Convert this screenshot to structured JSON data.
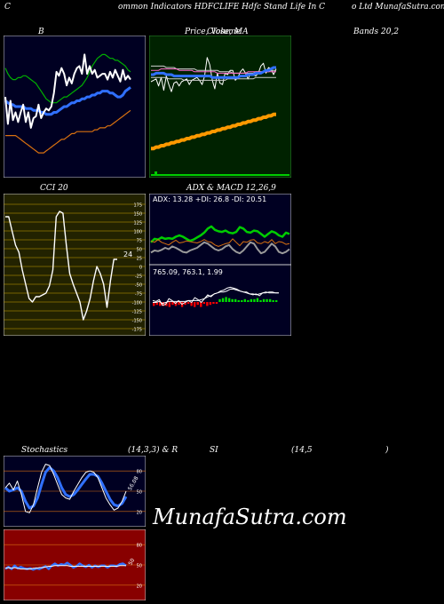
{
  "header": {
    "left": "C",
    "middle": "ommon  Indicators HDFCLIFE Hdfc Stand Life  In  C",
    "right": "o  Ltd MunafaSutra.com"
  },
  "titles": {
    "bands_b": "B",
    "price_a": "Price, Volume",
    "price_b": "Close, MA",
    "bands_end": "Bands 20,2",
    "cci": "CCI 20",
    "adx_macd": "ADX  & MACD 12,26,9",
    "stoch_a": "Stochastics",
    "stoch_b": "(14,3,3) & R",
    "rsi_a": "SI",
    "rsi_b": "(14,5",
    "rsi_c": ")"
  },
  "watermark": "MunafaSutra.com",
  "colors": {
    "bands_bg": "#000022",
    "price_bg": "#002200",
    "cci_bg": "#222200",
    "adx_bg": "#000022",
    "stoch_bg": "#000022",
    "rsi_bg": "#880000",
    "panel_border": "#2c8a2c",
    "grid_yellow": "#c8a000",
    "grid_white": "#ffffff",
    "upper_band": "#00b000",
    "lower_band": "#d87010",
    "mid_band": "#3070ff",
    "price_line": "#ffffff",
    "ma_orange": "#ff9900",
    "volume_green": "#00cc00",
    "adx_green": "#00cc00",
    "dim_grey": "#9a9a9a",
    "macd_red": "#ff0000",
    "macd_green": "#00dd00"
  },
  "chart_data": [
    {
      "type": "line",
      "panel": "bollinger",
      "x": [
        1,
        2,
        3,
        4,
        5,
        6,
        7,
        8,
        9,
        10,
        11,
        12,
        13,
        14,
        15,
        16,
        17,
        18,
        19,
        20,
        21,
        22,
        23,
        24,
        25,
        26,
        27,
        28,
        29,
        30,
        31,
        32,
        33,
        34,
        35,
        36,
        37,
        38,
        39,
        40,
        41,
        42,
        43,
        44,
        45,
        46,
        47,
        48,
        49,
        50
      ],
      "series": [
        {
          "values": [
            75,
            72,
            70,
            69,
            69,
            70,
            70,
            71,
            71,
            70,
            69,
            68,
            67,
            65,
            63,
            61,
            59,
            58,
            57,
            57,
            57,
            58,
            59,
            60,
            60,
            61,
            62,
            63,
            64,
            65,
            66,
            68,
            70,
            73,
            76,
            78,
            80,
            81,
            82,
            82,
            81,
            80,
            80,
            79,
            79,
            78,
            77,
            76,
            74,
            73
          ]
        },
        {
          "values": [
            58,
            57,
            56,
            56,
            55,
            55,
            55,
            55,
            54,
            54,
            54,
            53,
            53,
            53,
            52,
            52,
            51,
            51,
            51,
            52,
            52,
            53,
            54,
            55,
            55,
            56,
            57,
            57,
            58,
            58,
            59,
            59,
            60,
            60,
            61,
            61,
            62,
            62,
            63,
            63,
            63,
            62,
            62,
            61,
            60,
            60,
            61,
            63,
            64,
            65
          ]
        },
        {
          "values": [
            40,
            40,
            40,
            40,
            40,
            39,
            38,
            37,
            36,
            35,
            34,
            33,
            32,
            31,
            31,
            31,
            32,
            33,
            34,
            35,
            36,
            37,
            38,
            38,
            39,
            40,
            41,
            41,
            42,
            42,
            42,
            42,
            42,
            42,
            42,
            43,
            43,
            44,
            44,
            44,
            45,
            45,
            46,
            47,
            48,
            49,
            50,
            51,
            52,
            53
          ]
        },
        {
          "values": [
            60,
            46,
            58,
            48,
            52,
            47,
            52,
            56,
            47,
            52,
            44,
            49,
            50,
            56,
            49,
            52,
            54,
            53,
            55,
            62,
            73,
            71,
            75,
            72,
            66,
            70,
            67,
            72,
            75,
            76,
            72,
            82,
            72,
            76,
            72,
            74,
            70,
            71,
            72,
            72,
            69,
            73,
            70,
            74,
            71,
            68,
            74,
            69,
            71,
            69
          ]
        }
      ]
    },
    {
      "type": "line",
      "panel": "price_volume_ma",
      "x": [
        1,
        2,
        3,
        4,
        5,
        6,
        7,
        8,
        9,
        10,
        11,
        12,
        13,
        14,
        15,
        16,
        17,
        18,
        19,
        20,
        21,
        22,
        23,
        24,
        25,
        26,
        27,
        28,
        29,
        30,
        31,
        32,
        33,
        34,
        35,
        36,
        37,
        38,
        39,
        40,
        41,
        42,
        43,
        44,
        45,
        46,
        47,
        48,
        49,
        50
      ],
      "series": [
        {
          "values": [
            85,
            86,
            87,
            82,
            88,
            79,
            89,
            83,
            78,
            84,
            85,
            82,
            85,
            86,
            87,
            83,
            86,
            87,
            88,
            86,
            83,
            89,
            102,
            97,
            86,
            80,
            91,
            84,
            83,
            91,
            90,
            93,
            93,
            86,
            88,
            92,
            94,
            91,
            87,
            91,
            90,
            89,
            91,
            96,
            98,
            91,
            95,
            94,
            90,
            94
          ]
        },
        {
          "values": [
            96,
            96,
            96,
            96,
            96,
            96,
            95,
            95,
            95,
            95,
            94,
            94,
            94,
            94,
            94,
            94,
            94,
            94,
            93,
            93,
            93,
            93,
            93,
            93,
            93,
            93,
            93,
            92,
            92,
            92,
            92,
            92,
            91,
            91,
            91,
            91,
            91,
            91,
            91,
            91,
            91,
            92,
            92,
            92,
            92,
            92,
            92,
            93,
            93,
            93
          ]
        },
        {
          "values": [
            93,
            93,
            93,
            93,
            94,
            94,
            94,
            94,
            94,
            94,
            94,
            93,
            93,
            93,
            93,
            93,
            93,
            92,
            92,
            92,
            92,
            92,
            92,
            92,
            92,
            92,
            91,
            91,
            91,
            91,
            91,
            91,
            91,
            91,
            91,
            91,
            91,
            91,
            92,
            92,
            92,
            92,
            92,
            92,
            92,
            92,
            92,
            92,
            92,
            92
          ]
        },
        {
          "values": [
            88,
            88,
            88,
            88,
            88,
            88,
            88,
            87,
            87,
            87,
            87,
            87,
            87,
            86,
            86,
            86,
            86,
            86,
            86,
            86,
            86,
            86,
            86,
            86,
            86,
            86,
            86,
            86,
            86,
            86,
            87,
            87,
            87,
            87,
            87,
            87,
            87,
            87,
            87,
            87,
            87,
            88,
            88,
            88,
            88,
            88,
            88,
            88,
            88,
            88
          ]
        },
        {
          "values": [
            90,
            90,
            91,
            91,
            91,
            91,
            90,
            90,
            90,
            89,
            89,
            89,
            89,
            89,
            89,
            89,
            89,
            89,
            89,
            89,
            89,
            89,
            89,
            89,
            88,
            88,
            88,
            88,
            88,
            88,
            88,
            88,
            88,
            88,
            88,
            89,
            89,
            89,
            90,
            90,
            90,
            91,
            91,
            91,
            92,
            93,
            93,
            94,
            95,
            95
          ]
        },
        {
          "values": [
            38,
            38,
            39,
            39,
            40,
            40,
            41,
            41,
            42,
            42,
            43,
            43,
            44,
            44,
            45,
            45,
            46,
            46,
            47,
            47,
            48,
            48,
            49,
            49,
            50,
            50,
            51,
            51,
            52,
            52,
            53,
            53,
            54,
            54,
            55,
            55,
            56,
            56,
            57,
            57,
            58,
            58,
            59,
            59,
            60,
            60,
            61,
            61,
            62,
            62
          ]
        }
      ]
    },
    {
      "type": "line",
      "panel": "cci",
      "ylim": [
        -175,
        175
      ],
      "yticks": [
        175,
        150,
        125,
        100,
        75,
        50,
        25,
        0,
        -25,
        -50,
        -75,
        -100,
        -125,
        -150,
        -175
      ],
      "annotation": "24",
      "series": [
        {
          "values": [
            140,
            140,
            100,
            60,
            40,
            -10,
            -50,
            -90,
            -100,
            -85,
            -85,
            -80,
            -75,
            -55,
            -10,
            140,
            155,
            150,
            60,
            -20,
            -50,
            -75,
            -100,
            -150,
            -125,
            -90,
            -40,
            0,
            -20,
            -50,
            -115,
            -40,
            20,
            20
          ]
        }
      ]
    },
    {
      "type": "line",
      "panel": "adx",
      "text": "ADX: 13.28  +DI: 26.8  -DI: 20.51",
      "series": [
        {
          "values": [
            30,
            35,
            34,
            37,
            35,
            36,
            35,
            38,
            40,
            38,
            35,
            32,
            34,
            37,
            40,
            44,
            50,
            53,
            48,
            46,
            45,
            47,
            44,
            43,
            45,
            52,
            50,
            45,
            44,
            47,
            46,
            42,
            38,
            42,
            46,
            44,
            40,
            38,
            44,
            42
          ]
        },
        {
          "values": [
            32,
            30,
            34,
            30,
            28,
            26,
            30,
            33,
            29,
            30,
            32,
            31,
            30,
            29,
            31,
            34,
            31,
            30,
            26,
            24,
            26,
            28,
            29,
            35,
            30,
            25,
            31,
            30,
            33,
            34,
            29,
            28,
            31,
            29,
            34,
            28,
            31,
            30,
            27,
            28
          ]
        },
        {
          "values": [
            15,
            18,
            17,
            19,
            22,
            20,
            24,
            22,
            19,
            16,
            15,
            18,
            20,
            22,
            26,
            30,
            28,
            24,
            20,
            18,
            20,
            24,
            26,
            20,
            16,
            14,
            18,
            24,
            30,
            28,
            20,
            14,
            16,
            22,
            28,
            24,
            16,
            14,
            16,
            20
          ]
        }
      ]
    },
    {
      "type": "line",
      "panel": "macd",
      "text": "765.09,  763.1,  1.99",
      "series": [
        {
          "values": [
            755,
            755,
            756,
            754,
            755,
            756,
            756,
            756,
            756,
            756,
            756,
            757,
            757,
            757,
            757,
            758,
            759,
            761,
            762,
            764,
            765,
            766,
            766,
            767,
            769,
            769,
            768,
            767,
            766,
            765,
            764,
            764,
            763,
            764,
            765,
            766,
            765,
            765,
            765,
            765
          ]
        },
        {
          "values": [
            757,
            756,
            758,
            752,
            753,
            759,
            757,
            754,
            757,
            753,
            755,
            757,
            755,
            760,
            758,
            755,
            759,
            763,
            761,
            764,
            765,
            767,
            768,
            770,
            771,
            770,
            769,
            767,
            766,
            766,
            764,
            763,
            764,
            762,
            765,
            765,
            766,
            766,
            765,
            765
          ]
        }
      ]
    },
    {
      "type": "line",
      "panel": "stochastics",
      "yticks": [
        80,
        50,
        20
      ],
      "annotation": "56.08",
      "ylim": [
        0,
        100
      ],
      "series": [
        {
          "values": [
            55,
            62,
            52,
            65,
            45,
            20,
            18,
            30,
            55,
            78,
            90,
            88,
            75,
            60,
            45,
            40,
            38,
            50,
            60,
            70,
            78,
            80,
            78,
            70,
            55,
            40,
            30,
            22,
            25,
            35,
            50
          ]
        },
        {
          "values": [
            55,
            50,
            52,
            55,
            50,
            35,
            25,
            28,
            40,
            60,
            78,
            85,
            80,
            70,
            55,
            45,
            42,
            45,
            52,
            60,
            68,
            75,
            75,
            72,
            62,
            50,
            38,
            30,
            28,
            32,
            42
          ]
        }
      ]
    },
    {
      "type": "line",
      "panel": "rsi",
      "yticks": [
        80,
        50,
        20
      ],
      "annotation": "50",
      "ylim": [
        0,
        100
      ],
      "series": [
        {
          "values": [
            45,
            46,
            45,
            46,
            45,
            44,
            44,
            44,
            44,
            45,
            45,
            46,
            46,
            47,
            48,
            48,
            49,
            49,
            49,
            49,
            49,
            48,
            48,
            48,
            48,
            48,
            48,
            48,
            48,
            48,
            48,
            48,
            48,
            48,
            48,
            48,
            48,
            49,
            49,
            49
          ]
        },
        {
          "values": [
            44,
            47,
            44,
            49,
            45,
            47,
            45,
            44,
            45,
            43,
            45,
            44,
            46,
            48,
            44,
            49,
            52,
            49,
            51,
            50,
            53,
            50,
            46,
            48,
            52,
            49,
            47,
            50,
            46,
            49,
            47,
            49,
            49,
            46,
            49,
            49,
            48,
            51,
            52,
            49
          ]
        }
      ]
    }
  ]
}
